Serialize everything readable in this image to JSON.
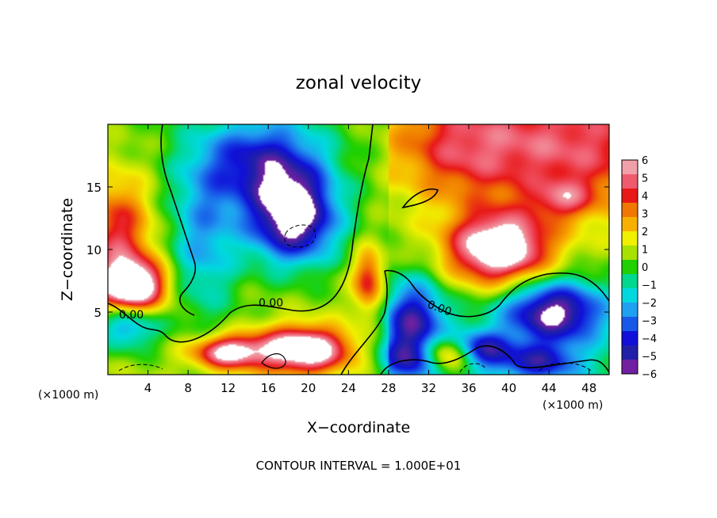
{
  "chart_data": {
    "type": "heatmap",
    "title": "zonal velocity",
    "xlabel": "X−coordinate",
    "ylabel": "Z−coordinate",
    "x_unit": "(×1000 m)",
    "z_unit": "(×1000 m)",
    "footer": "CONTOUR INTERVAL = 1.000E+01",
    "xlim": [
      0,
      50
    ],
    "zlim": [
      0,
      20
    ],
    "x_ticks": [
      4,
      8,
      12,
      16,
      20,
      24,
      28,
      32,
      36,
      40,
      44,
      48
    ],
    "z_ticks": [
      5,
      10,
      15
    ],
    "colorbar": {
      "labels": [
        "6",
        "5",
        "4",
        "3",
        "2",
        "1",
        "0",
        "−1",
        "−2",
        "−3",
        "−4",
        "−5",
        "−6"
      ],
      "range": [
        -6,
        6
      ],
      "colors": [
        "#f0a0a8",
        "#f05a6e",
        "#e81818",
        "#f07800",
        "#f8b000",
        "#f0f000",
        "#a8e000",
        "#20d000",
        "#00d890",
        "#00d8e0",
        "#20a0f0",
        "#1858e8",
        "#1010d8",
        "#2020a8",
        "#7020a0"
      ]
    },
    "contour_labels": [
      "0.00",
      "0.00",
      "0.00"
    ],
    "contour_interval": 10,
    "features": [
      {
        "kind": "low",
        "x": 18.5,
        "z": 12.5,
        "rx": 4.3,
        "rz": 3.5,
        "amp": -7.5
      },
      {
        "kind": "low",
        "x": 15.5,
        "z": 17.0,
        "rx": 6.0,
        "rz": 3.5,
        "amp": -5.0
      },
      {
        "kind": "low",
        "x": 9.5,
        "z": 11.0,
        "rx": 3.5,
        "rz": 6.5,
        "amp": -3.0
      },
      {
        "kind": "low",
        "x": 30.5,
        "z": 4.0,
        "rx": 3.0,
        "rz": 3.5,
        "amp": -5.5
      },
      {
        "kind": "low",
        "x": 44.5,
        "z": 5.0,
        "rx": 5.0,
        "rz": 2.5,
        "amp": -6.5
      },
      {
        "kind": "low",
        "x": 37.0,
        "z": 2.0,
        "rx": 3.0,
        "rz": 1.5,
        "amp": -5.0
      },
      {
        "kind": "low",
        "x": 2.0,
        "z": 4.0,
        "rx": 3.0,
        "rz": 2.0,
        "amp": -4.0
      },
      {
        "kind": "low",
        "x": 31.0,
        "z": 1.2,
        "rx": 3.5,
        "rz": 1.5,
        "amp": -4.0
      },
      {
        "kind": "low",
        "x": 43.0,
        "z": 1.0,
        "rx": 4.0,
        "rz": 1.5,
        "amp": -4.0
      },
      {
        "kind": "high",
        "x": 39.0,
        "z": 10.0,
        "rx": 5.0,
        "rz": 2.8,
        "amp": 7.5
      },
      {
        "kind": "high",
        "x": 2.5,
        "z": 7.0,
        "rx": 3.2,
        "rz": 2.0,
        "amp": 7.5
      },
      {
        "kind": "high",
        "x": 19.5,
        "z": 2.0,
        "rx": 4.5,
        "rz": 1.8,
        "amp": 7.5
      },
      {
        "kind": "high",
        "x": 12.0,
        "z": 1.8,
        "rx": 3.5,
        "rz": 1.3,
        "amp": 6.0
      },
      {
        "kind": "high",
        "x": 33.5,
        "z": 1.5,
        "rx": 3.0,
        "rz": 1.5,
        "amp": 6.5
      },
      {
        "kind": "high",
        "x": 46.0,
        "z": 18.0,
        "rx": 10.0,
        "rz": 5.0,
        "amp": 3.5
      },
      {
        "kind": "high",
        "x": 45.5,
        "z": 14.0,
        "rx": 3.0,
        "rz": 1.5,
        "amp": 2.5
      },
      {
        "kind": "high",
        "x": 1.0,
        "z": 11.0,
        "rx": 3.5,
        "rz": 5.0,
        "amp": 4.0
      },
      {
        "kind": "high",
        "x": 26.0,
        "z": 7.5,
        "rx": 1.5,
        "rz": 2.5,
        "amp": 4.0
      },
      {
        "kind": "high",
        "x": 35.0,
        "z": 18.0,
        "rx": 6.0,
        "rz": 4.0,
        "amp": 2.5
      }
    ]
  }
}
